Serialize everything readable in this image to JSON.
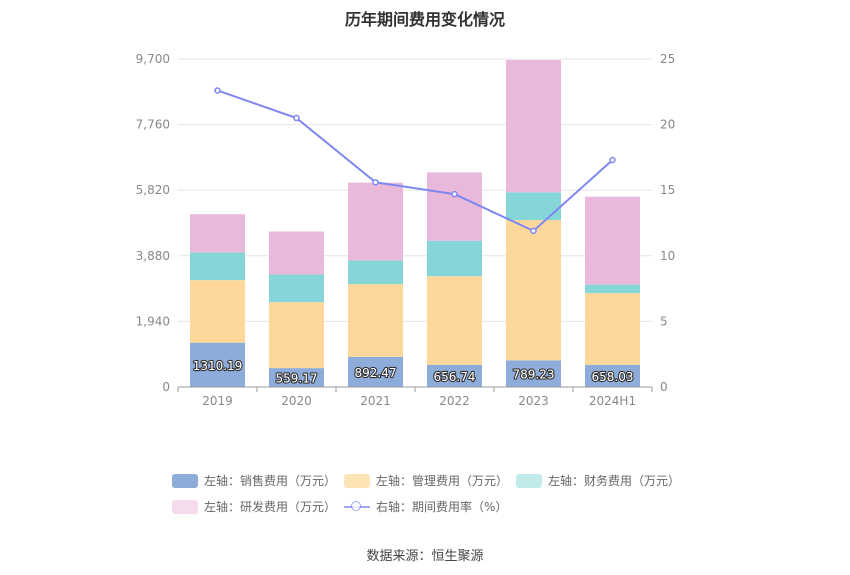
{
  "title": "历年期间费用变化情况",
  "source": "数据来源：恒生聚源",
  "legend": [
    {
      "label": "左轴：销售费用（万元）",
      "color": "#8eacd9",
      "kind": "box"
    },
    {
      "label": "左轴：管理费用（万元）",
      "color": "#fde4b6",
      "kind": "box"
    },
    {
      "label": "左轴：财务费用（万元）",
      "color": "#c0ebea",
      "kind": "box"
    },
    {
      "label": "左轴：研发费用（万元）",
      "color": "#f5dced",
      "kind": "box"
    },
    {
      "label": "右轴：期间费用率（%）",
      "color": "#7f87f0",
      "kind": "line"
    }
  ],
  "chart_data": {
    "type": "bar",
    "stacked": true,
    "categories": [
      "2019",
      "2020",
      "2021",
      "2022",
      "2023",
      "2024H1"
    ],
    "left_axis": {
      "ticks": [
        "0",
        "1,940",
        "3,880",
        "5,820",
        "7,760",
        "9,700"
      ],
      "min": 0,
      "max": 9700
    },
    "right_axis": {
      "ticks": [
        "0",
        "5",
        "10",
        "15",
        "20",
        "25"
      ],
      "min": 0,
      "max": 25
    },
    "series": [
      {
        "name": "左轴：销售费用（万元）",
        "color": "#8eacd9",
        "values": [
          1310.19,
          559.17,
          892.47,
          656.74,
          789.23,
          658.03
        ],
        "labels": [
          "1310.19",
          "559.17",
          "892.47",
          "656.74",
          "789.23",
          "658.03"
        ]
      },
      {
        "name": "左轴：管理费用（万元）",
        "color": "#fdd89a",
        "values": [
          1850,
          1950,
          2150,
          2620,
          4150,
          2120
        ]
      },
      {
        "name": "左轴：财务费用（万元）",
        "color": "#86d6d9",
        "values": [
          820,
          820,
          700,
          1050,
          820,
          250
        ]
      },
      {
        "name": "左轴：研发费用（万元）",
        "color": "#e8b9da",
        "values": [
          1130,
          1270,
          2300,
          2020,
          3910,
          2600
        ]
      }
    ],
    "line": {
      "name": "右轴：期间费用率（%）",
      "color": "#7f87f0",
      "values": [
        22.6,
        20.5,
        15.6,
        14.7,
        11.9,
        17.3
      ]
    },
    "grid": true
  }
}
